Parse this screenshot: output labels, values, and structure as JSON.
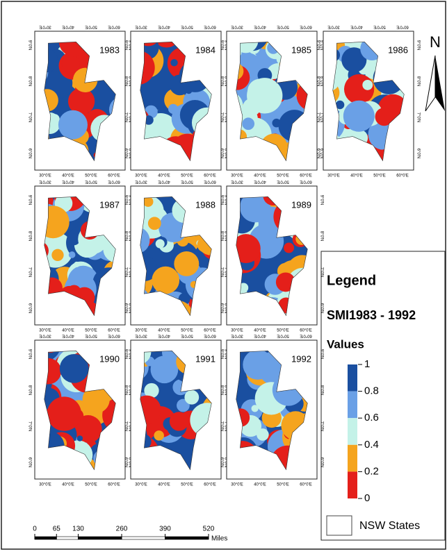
{
  "map": {
    "panels": [
      {
        "year": "1983"
      },
      {
        "year": "1984"
      },
      {
        "year": "1985"
      },
      {
        "year": "1986"
      },
      {
        "year": "1987"
      },
      {
        "year": "1988"
      },
      {
        "year": "1989"
      },
      {
        "year": "1990"
      },
      {
        "year": "1991"
      },
      {
        "year": "1992"
      }
    ],
    "x_ticks": [
      "30°0'E",
      "40°0'E",
      "50°0'E",
      "60°0'E"
    ],
    "y_ticks": [
      "9°0'N",
      "8°0'N",
      "7°0'N",
      "6°0'N"
    ],
    "north": "N",
    "legend": {
      "title": "Legend",
      "subtitle": "SMI1983 - 1992",
      "values_title": "Values",
      "breaks": [
        1,
        0.8,
        0.6,
        0.4,
        0.2,
        0
      ],
      "colors": [
        "#1a4fa0",
        "#6aa0e6",
        "#c4f2e8",
        "#f5a41e",
        "#e41f1a"
      ],
      "states_label": "NSW States"
    },
    "scale": {
      "ticks": [
        0,
        65,
        130,
        260,
        390,
        520
      ],
      "unit": "Miles"
    }
  }
}
